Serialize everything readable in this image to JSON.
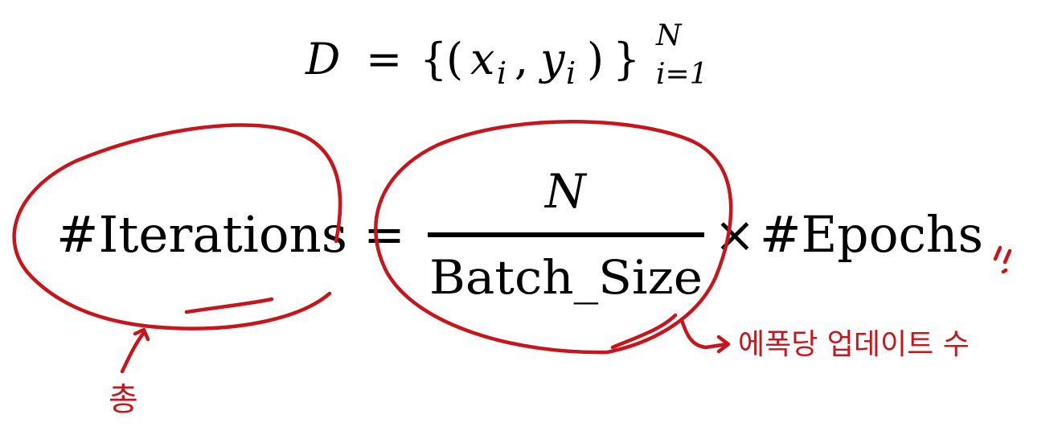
{
  "dataset_formula": {
    "D": "D",
    "eq": "=",
    "lbrace": "{",
    "lparen": "(",
    "x": "x",
    "x_sub": "i",
    "comma": ",",
    "y": "y",
    "y_sub": "i",
    "rparen": ")",
    "rbrace": "}",
    "upper": "N",
    "lower": "i=1"
  },
  "iterations_formula": {
    "lhs": "#Iterations",
    "eq": "=",
    "numerator": "N",
    "denominator": "Batch_Size",
    "times": "×",
    "rhs": "#Epochs"
  },
  "annotations": {
    "total_label": "총",
    "updates_per_epoch_label": "에폭당 업데이트 수",
    "double_slash": "//"
  },
  "colors": {
    "ink": "#000000",
    "annotation": "#c8151b",
    "background": "#ffffff"
  }
}
